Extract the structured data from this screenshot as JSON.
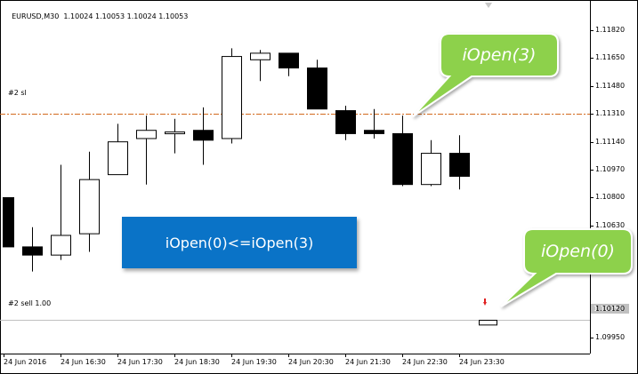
{
  "header": {
    "symbol": "EURUSD,M30",
    "ohlc": "1.10024 1.10053 1.10024 1.10053"
  },
  "levels": {
    "sl_label": "#2 sl",
    "sell_label": "#2 sell 1.00",
    "sl_color": "#d2691e"
  },
  "price_tag": "1.10053",
  "annotation": {
    "text": "iOpen(0)<=iOpen(3)",
    "color": "#0a73c7"
  },
  "callouts": {
    "open3": "iOpen(3)",
    "open0": "iOpen(0)",
    "color": "#8dd14b"
  },
  "colors": {
    "up_fill": "#ffffff",
    "down_fill": "#000000",
    "axis": "#000000",
    "sell_line": "#c0c0c0"
  },
  "chart_data": {
    "type": "candlestick",
    "y_ticks": [
      "1.11820",
      "1.11650",
      "1.11480",
      "1.11310",
      "1.11140",
      "1.10970",
      "1.10800",
      "1.10630",
      "1.10120",
      "1.09950"
    ],
    "x_ticks": [
      "24 Jun 2016",
      "24 Jun 16:30",
      "24 Jun 17:30",
      "24 Jun 18:30",
      "24 Jun 19:30",
      "24 Jun 20:30",
      "24 Jun 21:30",
      "24 Jun 22:30",
      "24 Jun 23:30"
    ],
    "ylim": [
      1.0985,
      1.1195
    ],
    "sl_price": 1.1131,
    "sell_price": 1.10053,
    "candles": [
      {
        "o": 1.108,
        "h": 1.108,
        "l": 1.105,
        "c": 1.105
      },
      {
        "o": 1.105,
        "h": 1.1062,
        "l": 1.1035,
        "c": 1.1045
      },
      {
        "o": 1.1045,
        "h": 1.11,
        "l": 1.1042,
        "c": 1.1057
      },
      {
        "o": 1.1058,
        "h": 1.1108,
        "l": 1.1047,
        "c": 1.1091
      },
      {
        "o": 1.1094,
        "h": 1.1125,
        "l": 1.1094,
        "c": 1.1114
      },
      {
        "o": 1.1116,
        "h": 1.113,
        "l": 1.1088,
        "c": 1.1121
      },
      {
        "o": 1.112,
        "h": 1.1128,
        "l": 1.1107,
        "c": 1.112
      },
      {
        "o": 1.1121,
        "h": 1.1135,
        "l": 1.11,
        "c": 1.1115
      },
      {
        "o": 1.1116,
        "h": 1.1171,
        "l": 1.1113,
        "c": 1.1166
      },
      {
        "o": 1.1164,
        "h": 1.117,
        "l": 1.1151,
        "c": 1.1168
      },
      {
        "o": 1.1168,
        "h": 1.1168,
        "l": 1.1154,
        "c": 1.1159
      },
      {
        "o": 1.1159,
        "h": 1.1164,
        "l": 1.1134,
        "c": 1.1134
      },
      {
        "o": 1.1133,
        "h": 1.1136,
        "l": 1.1115,
        "c": 1.1119
      },
      {
        "o": 1.1121,
        "h": 1.1134,
        "l": 1.1116,
        "c": 1.1119
      },
      {
        "o": 1.1119,
        "h": 1.113,
        "l": 1.1087,
        "c": 1.1088
      },
      {
        "o": 1.1088,
        "h": 1.1115,
        "l": 1.1087,
        "c": 1.1107
      },
      {
        "o": 1.1107,
        "h": 1.1118,
        "l": 1.1085,
        "c": 1.1093
      },
      {
        "o": 1.10024,
        "h": 1.10053,
        "l": 1.10024,
        "c": 1.10053
      }
    ]
  }
}
